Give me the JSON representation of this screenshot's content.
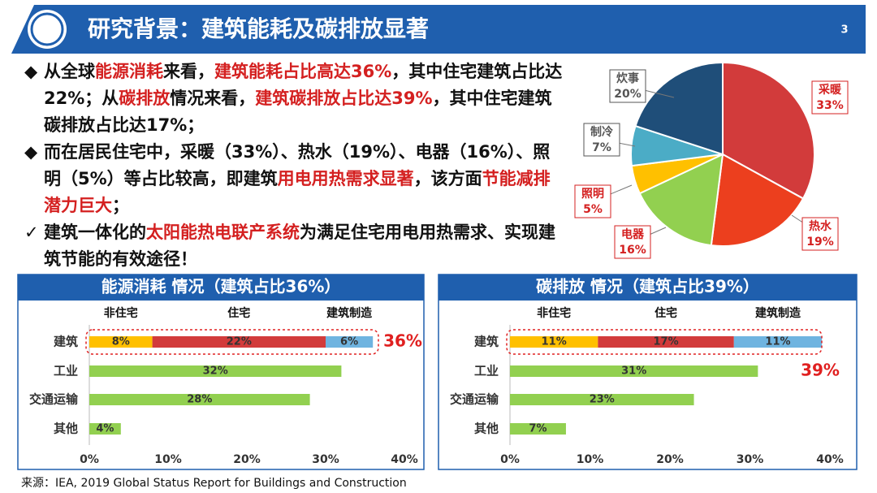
{
  "header": {
    "title": "研究背景：建筑能耗及碳排放显著",
    "page_number": "3"
  },
  "bullets": [
    {
      "marker": "◆",
      "runs": [
        {
          "text": "从全球"
        },
        {
          "text": "能源消耗",
          "color": "#d42020"
        },
        {
          "text": "来看，"
        },
        {
          "text": "建筑能耗占比高达36%",
          "color": "#d42020"
        },
        {
          "text": "，其中住宅建筑占比达22%；从"
        },
        {
          "text": "碳排放",
          "color": "#d42020"
        },
        {
          "text": "情况来看，"
        },
        {
          "text": "建筑碳排放占比达39%",
          "color": "#d42020"
        },
        {
          "text": "，其中住宅建筑碳排放占比达17%；"
        }
      ]
    },
    {
      "marker": "◆",
      "runs": [
        {
          "text": "而在居民住宅中，采暖（33%）、热水（19%）、电器（16%）、照明（5%）等占比较高，即建筑"
        },
        {
          "text": "用电用热需求显著",
          "color": "#d42020"
        },
        {
          "text": "，该方面"
        },
        {
          "text": "节能减排潜力巨大",
          "color": "#d42020"
        },
        {
          "text": "；"
        }
      ]
    },
    {
      "marker": "✓",
      "runs": [
        {
          "text": "建筑一体化的"
        },
        {
          "text": "太阳能热电联产系统",
          "color": "#d42020"
        },
        {
          "text": "为满足住宅用电用热需求、实现建筑节能的有效途径！"
        }
      ]
    }
  ],
  "source": "来源：IEA, 2019 Global Status Report for Buildings and Construction",
  "chart_data": [
    {
      "type": "pie",
      "categories": [
        "采暖",
        "热水",
        "电器",
        "照明",
        "制冷",
        "炊事"
      ],
      "values": [
        33,
        19,
        16,
        5,
        7,
        20
      ],
      "value_labels": [
        "33%",
        "19%",
        "16%",
        "5%",
        "7%",
        "20%"
      ],
      "colors": [
        "#d23b3b",
        "#ec3f1e",
        "#92d050",
        "#ffc000",
        "#4bacc6",
        "#1f4e79"
      ],
      "label_colors": [
        "#d42020",
        "#d42020",
        "#d42020",
        "#d42020",
        "#555555",
        "#555555"
      ]
    },
    {
      "type": "stacked-bar-horizontal",
      "title": "能源消耗 情况（建筑占比36%）",
      "categories": [
        "建筑",
        "工业",
        "交通运输",
        "其他"
      ],
      "series": [
        {
          "name": "非住宅",
          "color": "#ffc000",
          "values": [
            8,
            null,
            null,
            null
          ],
          "value_labels": [
            "8%",
            null,
            null,
            null
          ]
        },
        {
          "name": "住宅",
          "color": "#d23b3b",
          "values": [
            22,
            null,
            null,
            null
          ],
          "value_labels": [
            "22%",
            null,
            null,
            null
          ]
        },
        {
          "name": "建筑制造",
          "color": "#6fb4e0",
          "values": [
            6,
            null,
            null,
            null
          ],
          "value_labels": [
            "6%",
            null,
            null,
            null
          ]
        },
        {
          "color": "#92d050",
          "values": [
            null,
            32,
            28,
            4
          ],
          "value_labels": [
            null,
            "32%",
            "28%",
            "4%"
          ]
        }
      ],
      "annotation": "36%",
      "xlim": [
        0,
        40
      ],
      "xticks": [
        {
          "value": 0,
          "label": "0%"
        },
        {
          "value": 10,
          "label": "10%"
        },
        {
          "value": 20,
          "label": "20%"
        },
        {
          "value": 30,
          "label": "30%"
        },
        {
          "value": 40,
          "label": "40%"
        }
      ]
    },
    {
      "type": "stacked-bar-horizontal",
      "title": "碳排放 情况（建筑占比39%）",
      "categories": [
        "建筑",
        "工业",
        "交通运输",
        "其他"
      ],
      "series": [
        {
          "name": "非住宅",
          "color": "#ffc000",
          "values": [
            11,
            null,
            null,
            null
          ],
          "value_labels": [
            "11%",
            null,
            null,
            null
          ]
        },
        {
          "name": "住宅",
          "color": "#d23b3b",
          "values": [
            17,
            null,
            null,
            null
          ],
          "value_labels": [
            "17%",
            null,
            null,
            null
          ]
        },
        {
          "name": "建筑制造",
          "color": "#6fb4e0",
          "values": [
            11,
            null,
            null,
            null
          ],
          "value_labels": [
            "11%",
            null,
            null,
            null
          ]
        },
        {
          "color": "#92d050",
          "values": [
            null,
            31,
            23,
            7
          ],
          "value_labels": [
            null,
            "31%",
            "23%",
            "7%"
          ]
        }
      ],
      "annotation": "39%",
      "xlim": [
        0,
        40
      ],
      "xticks": [
        {
          "value": 0,
          "label": "0%"
        },
        {
          "value": 10,
          "label": "10%"
        },
        {
          "value": 20,
          "label": "20%"
        },
        {
          "value": 30,
          "label": "30%"
        },
        {
          "value": 40,
          "label": "40%"
        }
      ]
    }
  ]
}
